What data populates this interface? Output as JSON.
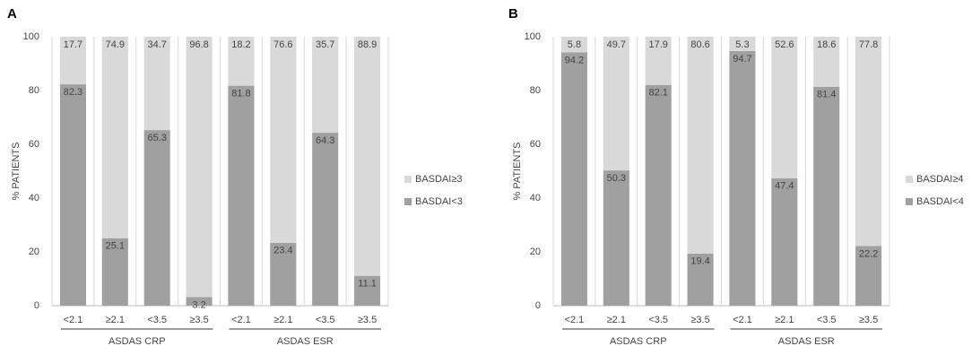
{
  "chart_data": [
    {
      "type": "stacked_bar",
      "panel": "A",
      "ylabel": "% PATIENTS",
      "categories": [
        "<2.1",
        "≥2.1",
        "<3.5",
        "≥3.5",
        "<2.1",
        "≥2.1",
        "<3.5",
        "≥3.5"
      ],
      "groups": [
        "ASDAS CRP",
        "ASDAS ESR"
      ],
      "series": [
        {
          "name": "BASDAI<3",
          "color": "#a0a0a0",
          "values": [
            82.3,
            25.1,
            65.3,
            3.2,
            81.8,
            23.4,
            64.3,
            11.1
          ]
        },
        {
          "name": "BASDAI≥3",
          "color": "#d9d9d9",
          "values": [
            17.7,
            74.9,
            34.7,
            96.8,
            18.2,
            76.6,
            35.7,
            88.9
          ]
        }
      ],
      "ylim": [
        0,
        100
      ],
      "yticks": [
        0,
        20,
        40,
        60,
        80,
        100
      ],
      "grid": false
    },
    {
      "type": "stacked_bar",
      "panel": "B",
      "ylabel": "% PATIENTS",
      "categories": [
        "<2.1",
        "≥2.1",
        "<3.5",
        "≥3.5",
        "<2.1",
        "≥2.1",
        "<3.5",
        "≥3.5"
      ],
      "groups": [
        "ASDAS CRP",
        "ASDAS ESR"
      ],
      "series": [
        {
          "name": "BASDAI<4",
          "color": "#a0a0a0",
          "values": [
            94.2,
            50.3,
            82.1,
            19.4,
            94.7,
            47.4,
            81.4,
            22.2
          ]
        },
        {
          "name": "BASDAI≥4",
          "color": "#d9d9d9",
          "values": [
            5.8,
            49.7,
            17.9,
            80.6,
            5.3,
            52.6,
            18.6,
            77.8
          ]
        }
      ],
      "ylim": [
        0,
        100
      ],
      "yticks": [
        0,
        20,
        40,
        60,
        80,
        100
      ],
      "grid": false
    }
  ]
}
